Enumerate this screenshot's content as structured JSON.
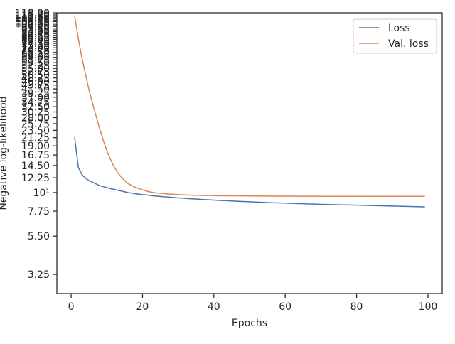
{
  "chart_data": {
    "type": "line",
    "title": "",
    "xlabel": "Epochs",
    "ylabel": "Negative log-likelihood",
    "xlim": [
      -4,
      104
    ],
    "ylim": [
      2.5,
      118
    ],
    "yscale": "log",
    "xticks": [
      0,
      20,
      40,
      60,
      80,
      100
    ],
    "yticks": [
      {
        "value": 3.25,
        "label": "3.25"
      },
      {
        "value": 5.5,
        "label": "5.50"
      },
      {
        "value": 7.75,
        "label": "7.75"
      },
      {
        "value": 10,
        "label": "10¹"
      },
      {
        "value": 12.25,
        "label": "12.25"
      },
      {
        "value": 14.5,
        "label": "14.50"
      },
      {
        "value": 16.75,
        "label": "16.75"
      },
      {
        "value": 19.0,
        "label": "19.00"
      },
      {
        "value": 21.25,
        "label": "21.25"
      },
      {
        "value": 23.5,
        "label": "23.50"
      },
      {
        "value": 25.75,
        "label": "25.75"
      },
      {
        "value": 28.0,
        "label": "28.00"
      },
      {
        "value": 30.25,
        "label": "30.25"
      },
      {
        "value": 32.5,
        "label": "32.50"
      },
      {
        "value": 34.75,
        "label": "34.75"
      },
      {
        "value": 37.0,
        "label": "37.00"
      },
      {
        "value": 39.25,
        "label": "39.25"
      },
      {
        "value": 41.5,
        "label": "41.50"
      },
      {
        "value": 43.75,
        "label": "43.75"
      },
      {
        "value": 46.0,
        "label": "46.00"
      },
      {
        "value": 48.25,
        "label": "48.25"
      },
      {
        "value": 50.5,
        "label": "50.50"
      },
      {
        "value": 52.75,
        "label": "52.75"
      },
      {
        "value": 55.0,
        "label": "55.00"
      },
      {
        "value": 57.25,
        "label": "57.25"
      },
      {
        "value": 59.5,
        "label": "59.50"
      },
      {
        "value": 61.75,
        "label": "61.75"
      },
      {
        "value": 64.0,
        "label": "64.00"
      },
      {
        "value": 66.25,
        "label": "66.25"
      },
      {
        "value": 68.5,
        "label": "68.50"
      },
      {
        "value": 70.75,
        "label": "70.75"
      },
      {
        "value": 73.0,
        "label": "73.00"
      },
      {
        "value": 75.25,
        "label": "75.25"
      },
      {
        "value": 77.5,
        "label": "77.50"
      },
      {
        "value": 79.75,
        "label": "79.75"
      },
      {
        "value": 82.0,
        "label": "82.00"
      },
      {
        "value": 84.25,
        "label": "84.25"
      },
      {
        "value": 86.5,
        "label": "86.50"
      },
      {
        "value": 88.75,
        "label": "88.75"
      },
      {
        "value": 91.0,
        "label": "91.00"
      },
      {
        "value": 93.25,
        "label": "93.25"
      },
      {
        "value": 95.5,
        "label": "95.50"
      },
      {
        "value": 97.75,
        "label": "97.75"
      },
      {
        "value": 100.0,
        "label": "100.00"
      },
      {
        "value": 102.25,
        "label": "102.25"
      },
      {
        "value": 104.5,
        "label": "104.50"
      },
      {
        "value": 106.75,
        "label": "106.75"
      },
      {
        "value": 109.0,
        "label": "109.00"
      },
      {
        "value": 111.25,
        "label": "111.25"
      },
      {
        "value": 113.5,
        "label": "113.50"
      },
      {
        "value": 115.75,
        "label": "115.75"
      },
      {
        "value": 118.0,
        "label": "118.00"
      }
    ],
    "grid": false,
    "legend_position": "upper right",
    "series": [
      {
        "name": "Loss",
        "color": "#4c72b0",
        "x": [
          1,
          2,
          3,
          4,
          5,
          6,
          7,
          8,
          9,
          10,
          11,
          12,
          13,
          14,
          15,
          16,
          17,
          18,
          19,
          20,
          21,
          22,
          23,
          24,
          25,
          26,
          27,
          28,
          29,
          30,
          31,
          32,
          33,
          34,
          35,
          36,
          37,
          38,
          39,
          40,
          41,
          42,
          43,
          44,
          45,
          46,
          47,
          48,
          49,
          50,
          51,
          52,
          53,
          54,
          55,
          56,
          57,
          58,
          59,
          60,
          61,
          62,
          63,
          64,
          65,
          66,
          67,
          68,
          69,
          70,
          71,
          72,
          73,
          74,
          75,
          76,
          77,
          78,
          79,
          80,
          81,
          82,
          83,
          84,
          85,
          86,
          87,
          88,
          89,
          90,
          91,
          92,
          93,
          94,
          95,
          96,
          97,
          98,
          99
        ],
        "y": [
          21.2,
          14.2,
          12.8,
          12.2,
          11.8,
          11.5,
          11.25,
          11.0,
          10.85,
          10.7,
          10.55,
          10.45,
          10.32,
          10.22,
          10.1,
          10.0,
          9.92,
          9.85,
          9.78,
          9.72,
          9.68,
          9.62,
          9.56,
          9.52,
          9.48,
          9.44,
          9.41,
          9.37,
          9.33,
          9.29,
          9.26,
          9.23,
          9.2,
          9.17,
          9.14,
          9.12,
          9.09,
          9.07,
          9.04,
          9.02,
          8.99,
          8.97,
          8.95,
          8.93,
          8.91,
          8.89,
          8.87,
          8.85,
          8.83,
          8.81,
          8.79,
          8.77,
          8.76,
          8.74,
          8.72,
          8.71,
          8.69,
          8.68,
          8.66,
          8.65,
          8.63,
          8.62,
          8.6,
          8.59,
          8.58,
          8.56,
          8.55,
          8.54,
          8.53,
          8.51,
          8.5,
          8.49,
          8.48,
          8.47,
          8.46,
          8.45,
          8.44,
          8.43,
          8.42,
          8.41,
          8.4,
          8.39,
          8.38,
          8.37,
          8.36,
          8.35,
          8.34,
          8.33,
          8.32,
          8.31,
          8.3,
          8.29,
          8.28,
          8.27,
          8.26,
          8.25,
          8.24,
          8.23,
          8.22
        ]
      },
      {
        "name": "Val. loss",
        "color": "#dd8452",
        "x": [
          1,
          2,
          3,
          4,
          5,
          6,
          7,
          8,
          9,
          10,
          11,
          12,
          13,
          14,
          15,
          16,
          17,
          18,
          19,
          20,
          21,
          22,
          23,
          24,
          25,
          26,
          27,
          28,
          29,
          30,
          31,
          32,
          33,
          34,
          35,
          36,
          37,
          38,
          39,
          40,
          41,
          42,
          43,
          44,
          45,
          46,
          47,
          48,
          49,
          50,
          51,
          52,
          53,
          54,
          55,
          56,
          57,
          58,
          59,
          60,
          61,
          62,
          63,
          64,
          65,
          66,
          67,
          68,
          69,
          70,
          71,
          72,
          73,
          74,
          75,
          76,
          77,
          78,
          79,
          80,
          81,
          82,
          83,
          84,
          85,
          86,
          87,
          88,
          89,
          90,
          91,
          92,
          93,
          94,
          95,
          96,
          97,
          98,
          99
        ],
        "y": [
          113.0,
          83.0,
          64.0,
          51.0,
          41.0,
          34.0,
          28.5,
          24.0,
          20.5,
          17.8,
          15.8,
          14.3,
          13.2,
          12.4,
          11.8,
          11.3,
          11.0,
          10.75,
          10.55,
          10.38,
          10.22,
          10.1,
          10.0,
          9.95,
          9.9,
          9.85,
          9.8,
          9.78,
          9.75,
          9.72,
          9.7,
          9.68,
          9.66,
          9.64,
          9.63,
          9.62,
          9.61,
          9.6,
          9.6,
          9.59,
          9.58,
          9.58,
          9.57,
          9.57,
          9.56,
          9.56,
          9.55,
          9.55,
          9.55,
          9.54,
          9.54,
          9.54,
          9.53,
          9.53,
          9.53,
          9.53,
          9.52,
          9.52,
          9.52,
          9.52,
          9.52,
          9.52,
          9.51,
          9.51,
          9.51,
          9.51,
          9.51,
          9.51,
          9.51,
          9.5,
          9.5,
          9.5,
          9.5,
          9.5,
          9.5,
          9.5,
          9.5,
          9.5,
          9.5,
          9.5,
          9.5,
          9.5,
          9.5,
          9.5,
          9.5,
          9.5,
          9.5,
          9.5,
          9.5,
          9.5,
          9.5,
          9.5,
          9.5,
          9.5,
          9.5,
          9.5,
          9.5,
          9.5,
          9.5
        ]
      }
    ]
  }
}
